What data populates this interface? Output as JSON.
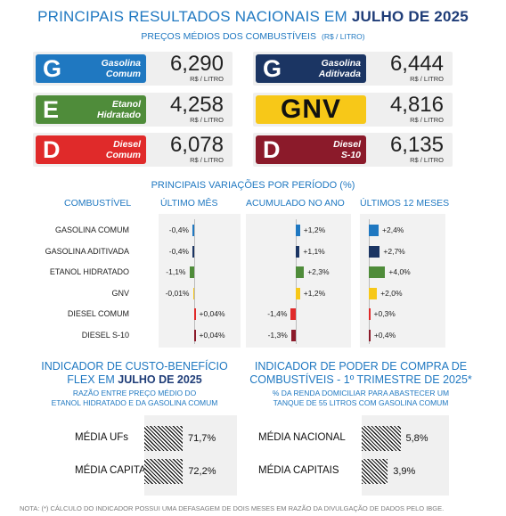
{
  "header": {
    "title_prefix": "PRINCIPAIS RESULTADOS NACIONAIS EM",
    "title_period": "JULHO DE 2025",
    "subtitle": "PREÇOS MÉDIOS DOS COMBUSTÍVEIS",
    "subtitle_unit": "(R$ / LITRO)"
  },
  "prices": [
    {
      "letter": "G",
      "name": "Gasolina\nComum",
      "price": "6,290",
      "unit": "R$ / LITRO",
      "color": "#1f78c1"
    },
    {
      "letter": "G",
      "name": "Gasolina\nAditivada",
      "price": "6,444",
      "unit": "R$ / LITRO",
      "color": "#1b3563"
    },
    {
      "letter": "E",
      "name": "Etanol\nHidratado",
      "price": "4,258",
      "unit": "R$ / LITRO",
      "color": "#4f8c3a"
    },
    {
      "letter": "GNV",
      "name": "",
      "price": "4,816",
      "unit": "R$ / LITRO",
      "color": "#f7c818"
    },
    {
      "letter": "D",
      "name": "Diesel\nComum",
      "price": "6,078",
      "unit": "R$ / LITRO",
      "color": "#e02a2a"
    },
    {
      "letter": "D",
      "name": "Diesel\nS-10",
      "price": "6,135",
      "unit": "R$ / LITRO",
      "color": "#8b1a2a"
    }
  ],
  "variations": {
    "title": "PRINCIPAIS VARIAÇÕES POR PERÍODO (%)",
    "col_fuel": "COMBUSTÍVEL",
    "col_month": "ÚLTIMO MÊS",
    "col_year": "ACUMULADO NO ANO",
    "col_12m": "ÚLTIMOS 12 MESES",
    "fuels": [
      "GASOLINA COMUM",
      "GASOLINA ADITIVADA",
      "ETANOL HIDRATADO",
      "GNV",
      "DIESEL COMUM",
      "DIESEL  S-10"
    ],
    "colors": [
      "#1f78c1",
      "#1b3563",
      "#4f8c3a",
      "#f7c818",
      "#e02a2a",
      "#8b1a2a"
    ],
    "month": [
      -0.4,
      -0.4,
      -1.1,
      -0.01,
      0.04,
      0.04
    ],
    "month_labels": [
      "-0,4%",
      "-0,4%",
      "-1,1%",
      "-0,01%",
      "+0,04%",
      "+0,04%"
    ],
    "year": [
      1.2,
      1.1,
      2.3,
      1.2,
      -1.4,
      -1.3
    ],
    "year_labels": [
      "+1,2%",
      "+1,1%",
      "+2,3%",
      "+1,2%",
      "-1,4%",
      "-1,3%"
    ],
    "m12": [
      2.4,
      2.7,
      4.0,
      2.0,
      0.3,
      0.4
    ],
    "m12_labels": [
      "+2,4%",
      "+2,7%",
      "+4,0%",
      "+2,0%",
      "+0,3%",
      "+0,4%"
    ]
  },
  "cost_benefit": {
    "title_line1": "INDICADOR DE CUSTO-BENEFÍCIO",
    "title_line2_prefix": "FLEX EM",
    "title_line2_period": "JULHO DE 2025",
    "sub_line1": "RAZÃO ENTRE PREÇO MÉDIO DO",
    "sub_line2": "ETANOL HIDRATADO E DA GASOLINA COMUM",
    "rows": [
      {
        "label": "MÉDIA UFs",
        "value": 71.7,
        "value_label": "71,7%"
      },
      {
        "label": "MÉDIA CAPITAIS",
        "value": 72.2,
        "value_label": "72,2%"
      }
    ]
  },
  "purchasing_power": {
    "title_line1": "INDICADOR DE PODER DE COMPRA DE",
    "title_line2": "COMBUSTÍVEIS - 1º TRIMESTRE DE 2025*",
    "sub_line1": "% DA RENDA DOMICILIAR PARA ABASTECER UM",
    "sub_line2": "TANQUE DE 55 LITROS COM GASOLINA COMUM",
    "rows": [
      {
        "label": "MÉDIA NACIONAL",
        "value": 5.8,
        "value_label": "5,8%"
      },
      {
        "label": "MÉDIA CAPITAIS",
        "value": 3.9,
        "value_label": "3,9%"
      }
    ]
  },
  "footnote": "NOTA: (*) CÁLCULO DO INDICADOR POSSUI UMA DEFASAGEM DE DOIS MESES EM RAZÃO DA DIVULGAÇÃO DE DADOS PELO IBGE."
}
